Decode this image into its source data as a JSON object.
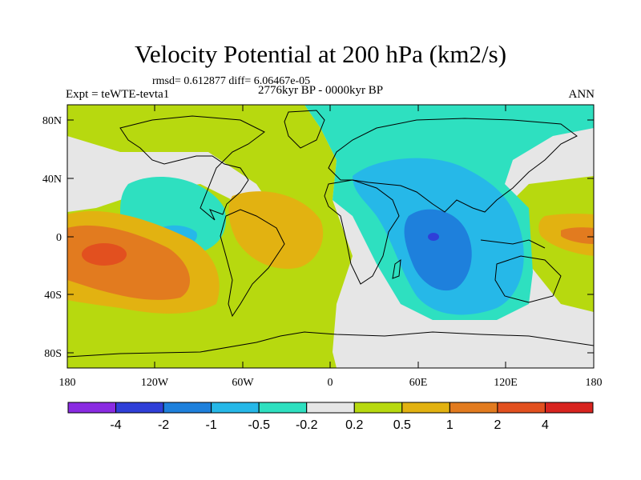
{
  "title": "Velocity Potential at 200 hPa (km2/s)",
  "stats": "rmsd= 0.612877 diff= 6.06467e-05",
  "experiment": "Expt = teWTE-tevta1",
  "period": "2776kyr BP - 0000kyr BP",
  "season": "ANN",
  "lat_ticks": [
    "80N",
    "40N",
    "0",
    "40S",
    "80S"
  ],
  "lon_ticks": [
    "180",
    "120W",
    "60W",
    "0",
    "60E",
    "120E",
    "180"
  ],
  "colorbar": {
    "colors": [
      "#8a2be2",
      "#2f3fd8",
      "#1e80dc",
      "#26b8e8",
      "#2ee0c0",
      "#e6e6e6",
      "#b7d90f",
      "#e2b211",
      "#e27b1f",
      "#e2501f",
      "#d8241f"
    ],
    "labels": [
      "-4",
      "-2",
      "-1",
      "-0.5",
      "-0.2",
      "0.2",
      "0.5",
      "1",
      "2",
      "4"
    ]
  }
}
